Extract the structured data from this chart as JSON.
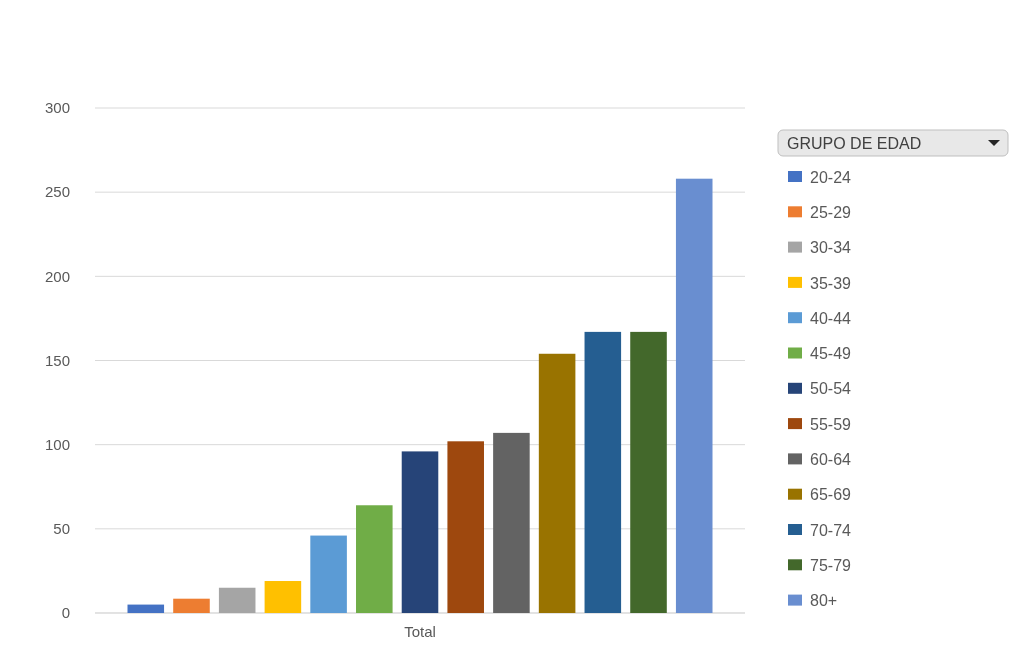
{
  "chart_data": {
    "type": "bar",
    "categories": [
      "Total"
    ],
    "legend_title": "GRUPO DE EDAD",
    "legend": "right",
    "grid": "y",
    "ylim": [
      0,
      300
    ],
    "yticks": [
      0,
      50,
      100,
      150,
      200,
      250,
      300
    ],
    "series": [
      {
        "name": "20-24",
        "color": "#4472c4",
        "values": [
          5
        ]
      },
      {
        "name": "25-29",
        "color": "#ed7d31",
        "values": [
          8.5
        ]
      },
      {
        "name": "30-34",
        "color": "#a5a5a5",
        "values": [
          15
        ]
      },
      {
        "name": "35-39",
        "color": "#ffc000",
        "values": [
          19
        ]
      },
      {
        "name": "40-44",
        "color": "#5b9bd5",
        "values": [
          46
        ]
      },
      {
        "name": "45-49",
        "color": "#70ad47",
        "values": [
          64
        ]
      },
      {
        "name": "50-54",
        "color": "#264478",
        "values": [
          96
        ]
      },
      {
        "name": "55-59",
        "color": "#9e480e",
        "values": [
          102
        ]
      },
      {
        "name": "60-64",
        "color": "#636363",
        "values": [
          107
        ]
      },
      {
        "name": "65-69",
        "color": "#997300",
        "values": [
          154
        ]
      },
      {
        "name": "70-74",
        "color": "#255e91",
        "values": [
          167
        ]
      },
      {
        "name": "75-79",
        "color": "#43682b",
        "values": [
          167
        ]
      },
      {
        "name": "80+",
        "color": "#698ed0",
        "values": [
          258
        ]
      }
    ]
  }
}
